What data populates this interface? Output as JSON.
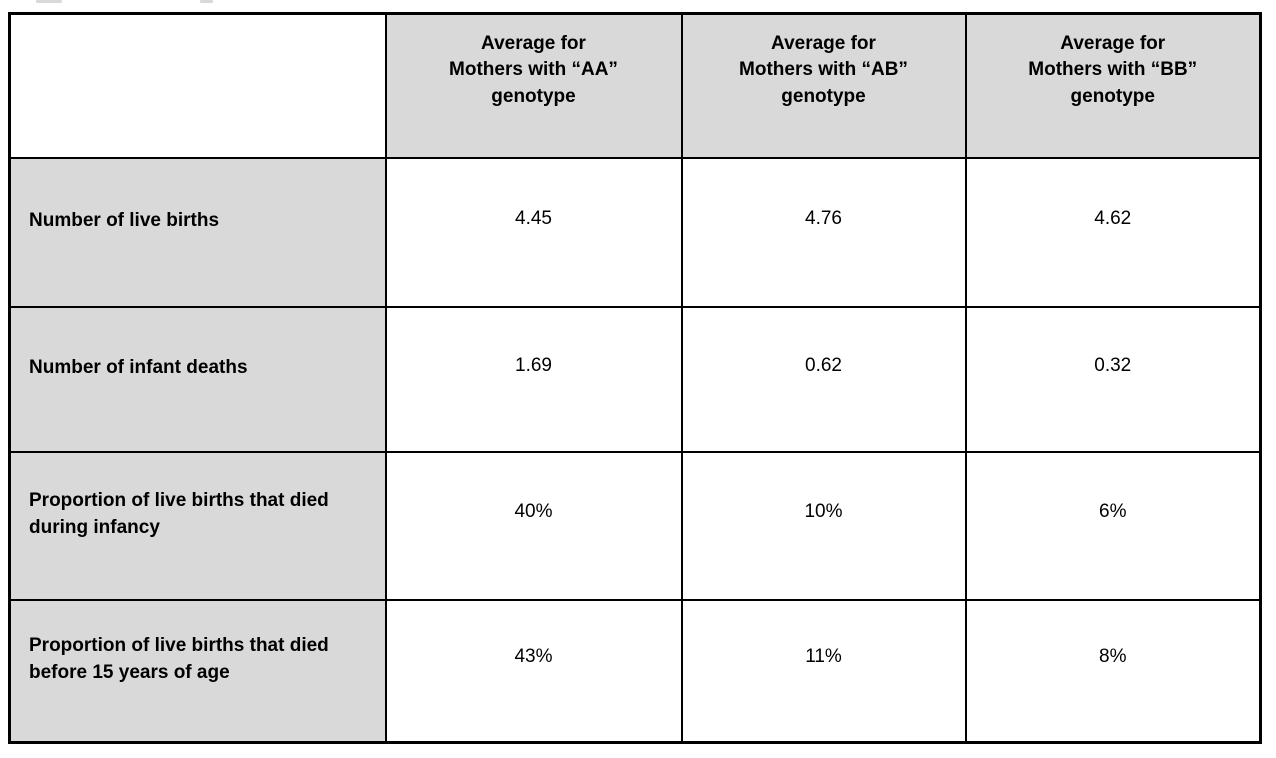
{
  "colors": {
    "cell_shade": "#d9d9d9",
    "border": "#000000",
    "text": "#000000",
    "background": "#ffffff"
  },
  "table": {
    "corner_label": "",
    "column_headers": [
      "Average for\nMothers with “AA”\ngenotype",
      "Average for\nMothers with “AB”\ngenotype",
      "Average for\nMothers with “BB”\ngenotype"
    ],
    "rows": [
      {
        "label": "Number of live births",
        "values": [
          "4.45",
          "4.76",
          "4.62"
        ]
      },
      {
        "label": "Number of infant deaths",
        "values": [
          "1.69",
          "0.62",
          "0.32"
        ]
      },
      {
        "label": "Proportion of live births that died during infancy",
        "values": [
          "40%",
          "10%",
          "6%"
        ]
      },
      {
        "label": "Proportion of live births that died before 15 years of age",
        "values": [
          "43%",
          "11%",
          "8%"
        ]
      }
    ]
  }
}
